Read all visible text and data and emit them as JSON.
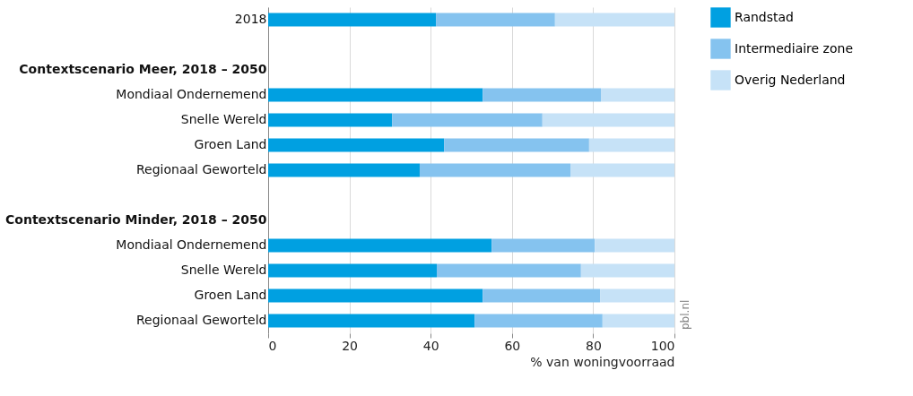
{
  "chart_data": {
    "type": "bar",
    "orientation": "horizontal",
    "stacked": true,
    "categories": [
      "2018",
      null,
      "Contextscenario Meer, 2018 – 2050",
      "Mondiaal Ondernemend",
      "Snelle Wereld",
      "Groen Land",
      "Regionaal Geworteld",
      null,
      "Contextscenario Minder, 2018 – 2050",
      "Mondiaal Ondernemend",
      "Snelle Wereld",
      "Groen Land",
      "Regionaal Geworteld"
    ],
    "series": [
      {
        "name": "Randstad",
        "color": "#00a0e1",
        "values": [
          41.3,
          null,
          null,
          52.8,
          30.5,
          43.3,
          37.3,
          null,
          null,
          55.0,
          41.5,
          52.8,
          50.8
        ]
      },
      {
        "name": "Intermediaire zone",
        "color": "#85c3ef",
        "values": [
          29.3,
          null,
          null,
          29.1,
          37.0,
          35.7,
          37.1,
          null,
          null,
          25.4,
          35.5,
          28.9,
          31.5
        ]
      },
      {
        "name": "Overig Nederland",
        "color": "#c6e2f7",
        "values": [
          29.4,
          null,
          null,
          18.1,
          32.5,
          21.0,
          25.6,
          null,
          null,
          19.6,
          23.0,
          18.3,
          17.7
        ]
      }
    ],
    "xlim": [
      0,
      100
    ],
    "xticks": [
      0,
      20,
      40,
      60,
      80,
      100
    ],
    "xlabel": "% van woningvoorraad",
    "grid": "x",
    "legend": "top right",
    "annotations": [
      "pbl.nl"
    ]
  }
}
